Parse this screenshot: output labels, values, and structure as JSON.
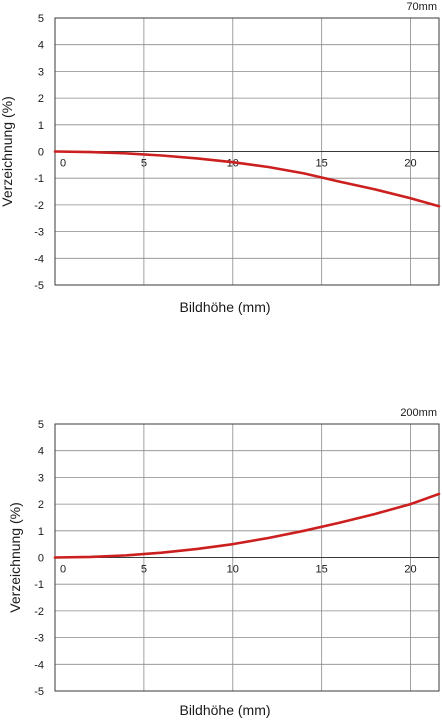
{
  "colors": {
    "curve": "#cc1f1f",
    "grid": "#8a8a8a",
    "frame": "#3a3a3a"
  },
  "chart_data": [
    {
      "type": "line",
      "title": "70mm",
      "xlabel": "Bildhöhe (mm)",
      "ylabel": "Verzeichnung (%)",
      "xlim": [
        0,
        21.6
      ],
      "ylim": [
        -5,
        5
      ],
      "xticks": [
        0,
        5,
        10,
        15,
        20
      ],
      "yticks": [
        5,
        4,
        3,
        2,
        1,
        0,
        -1,
        -2,
        -3,
        -4,
        -5
      ],
      "grid": true,
      "series": [
        {
          "x": [
            0,
            2,
            4,
            6,
            8,
            10,
            12,
            14,
            16,
            18,
            20,
            21.6
          ],
          "values": [
            0,
            -0.02,
            -0.07,
            -0.15,
            -0.26,
            -0.4,
            -0.58,
            -0.82,
            -1.13,
            -1.42,
            -1.75,
            -2.05
          ]
        }
      ]
    },
    {
      "type": "line",
      "title": "200mm",
      "xlabel": "Bildhöhe (mm)",
      "ylabel": "Verzeichnung (%)",
      "xlim": [
        0,
        21.6
      ],
      "ylim": [
        -5,
        5
      ],
      "xticks": [
        0,
        5,
        10,
        15,
        20
      ],
      "yticks": [
        5,
        4,
        3,
        2,
        1,
        0,
        -1,
        -2,
        -3,
        -4,
        -5
      ],
      "grid": true,
      "series": [
        {
          "x": [
            0,
            2,
            4,
            6,
            8,
            10,
            12,
            14,
            16,
            18,
            20,
            21.6
          ],
          "values": [
            0,
            0.02,
            0.08,
            0.18,
            0.32,
            0.5,
            0.73,
            1.0,
            1.3,
            1.63,
            2.0,
            2.38
          ]
        }
      ]
    }
  ]
}
